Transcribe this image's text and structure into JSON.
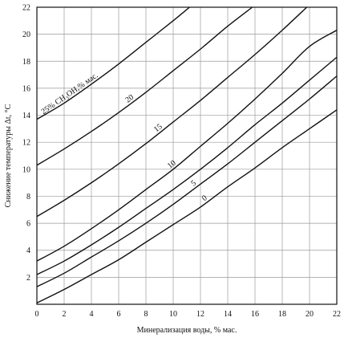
{
  "chart_data": {
    "type": "line",
    "xlabel": "Минерализация воды, % мас.",
    "ylabel": "Снижение температуры  Δt, °C",
    "xlim": [
      0,
      22
    ],
    "ylim": [
      0,
      22
    ],
    "x_ticks": [
      "0",
      "2",
      "4",
      "6",
      "8",
      "10",
      "12",
      "14",
      "16",
      "18",
      "20",
      "22"
    ],
    "y_ticks": [
      "0",
      "2",
      "4",
      "6",
      "8",
      "10",
      "12",
      "14",
      "16",
      "18",
      "20",
      "22"
    ],
    "grid": true,
    "series": [
      {
        "name": "0",
        "x": [
          0,
          2,
          4,
          6,
          8,
          10,
          12,
          14,
          16,
          18,
          20,
          22
        ],
        "y": [
          0.1,
          1.1,
          2.2,
          3.3,
          4.6,
          5.9,
          7.2,
          8.7,
          10.1,
          11.6,
          13.0,
          14.4
        ]
      },
      {
        "name": "5",
        "x": [
          0,
          2,
          4,
          6,
          8,
          10,
          12,
          14,
          16,
          18,
          20,
          22
        ],
        "y": [
          1.3,
          2.3,
          3.5,
          4.7,
          6.0,
          7.4,
          8.9,
          10.4,
          12.0,
          13.6,
          15.2,
          16.9
        ]
      },
      {
        "name": "",
        "x": [
          0,
          2,
          4,
          6,
          8,
          10,
          12,
          14,
          16,
          18,
          20,
          22
        ],
        "y": [
          2.2,
          3.2,
          4.4,
          5.7,
          7.1,
          8.5,
          10.0,
          11.6,
          13.3,
          14.9,
          16.6,
          18.3
        ]
      },
      {
        "name": "10",
        "x": [
          0,
          2,
          4,
          6,
          8,
          10,
          12,
          14,
          16,
          18,
          20,
          22
        ],
        "y": [
          3.2,
          4.3,
          5.6,
          7.0,
          8.5,
          10.0,
          11.7,
          13.4,
          15.2,
          17.1,
          19.1,
          20.3
        ]
      },
      {
        "name": "15",
        "x": [
          0,
          2,
          4,
          6,
          8,
          10,
          12,
          14,
          16,
          18,
          19.8
        ],
        "y": [
          6.5,
          7.7,
          9.0,
          10.4,
          11.9,
          13.5,
          15.1,
          16.8,
          18.5,
          20.3,
          22.0
        ]
      },
      {
        "name": "20",
        "x": [
          0,
          2,
          4,
          6,
          8,
          10,
          12,
          14,
          15.8
        ],
        "y": [
          10.3,
          11.5,
          12.8,
          14.2,
          15.7,
          17.3,
          18.9,
          20.6,
          22.0
        ]
      },
      {
        "name": "25% CH₃OH,% мас.",
        "x": [
          0,
          2,
          4,
          6,
          8,
          10,
          11.2
        ],
        "y": [
          13.7,
          14.9,
          16.3,
          17.8,
          19.4,
          21.0,
          22.0
        ]
      }
    ]
  }
}
